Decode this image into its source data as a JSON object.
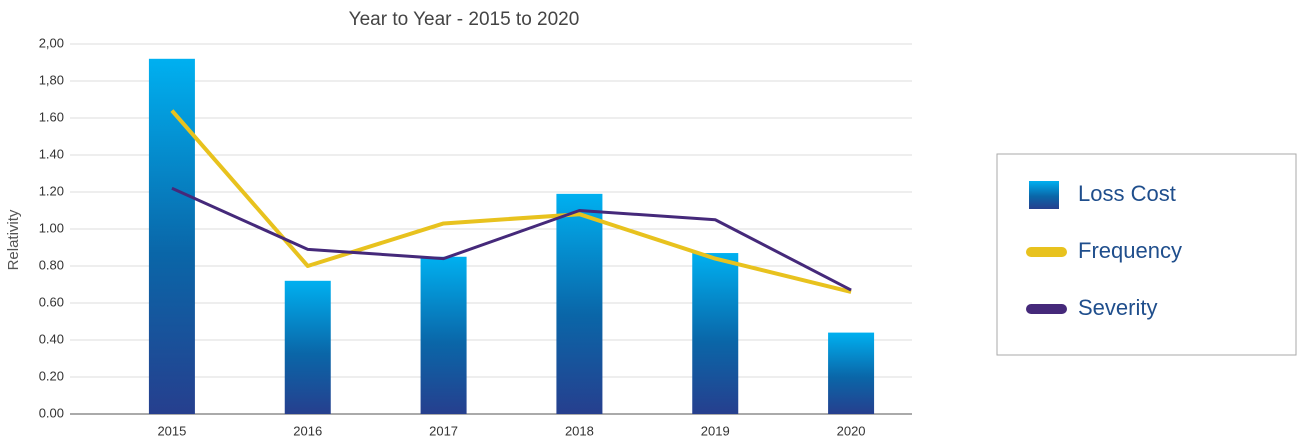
{
  "chart_data": {
    "type": "bar",
    "title": "Year to Year - 2015 to 2020",
    "y_label": "Relativity",
    "categories": [
      "2015",
      "2016",
      "2017",
      "2018",
      "2019",
      "2020"
    ],
    "series": [
      {
        "name": "Loss Cost",
        "type": "bar",
        "color": "#00b0f0",
        "values": [
          1.92,
          0.72,
          0.85,
          1.19,
          0.87,
          0.44
        ]
      },
      {
        "name": "Frequency",
        "type": "line",
        "color": "#e8c21e",
        "values": [
          1.64,
          0.8,
          1.03,
          1.08,
          0.84,
          0.66
        ]
      },
      {
        "name": "Severity",
        "type": "line",
        "color": "#45297a",
        "values": [
          1.22,
          0.89,
          0.84,
          1.1,
          1.05,
          0.67
        ]
      }
    ],
    "ylim": [
      0,
      2
    ],
    "yticks": [
      {
        "value": 0,
        "label": "0.00"
      },
      {
        "value": 0.2,
        "label": "0.20"
      },
      {
        "value": 0.4,
        "label": "0.40"
      },
      {
        "value": 0.6,
        "label": "0.60"
      },
      {
        "value": 0.8,
        "label": "0.80"
      },
      {
        "value": 1,
        "label": "1.00"
      },
      {
        "value": 1.2,
        "label": "1.20"
      },
      {
        "value": 1.4,
        "label": "1.40"
      },
      {
        "value": 1.6,
        "label": "1.60"
      },
      {
        "value": 1.8,
        "label": "1,80"
      },
      {
        "value": 2,
        "label": "2,00"
      }
    ],
    "grid": true,
    "legend": "right"
  }
}
